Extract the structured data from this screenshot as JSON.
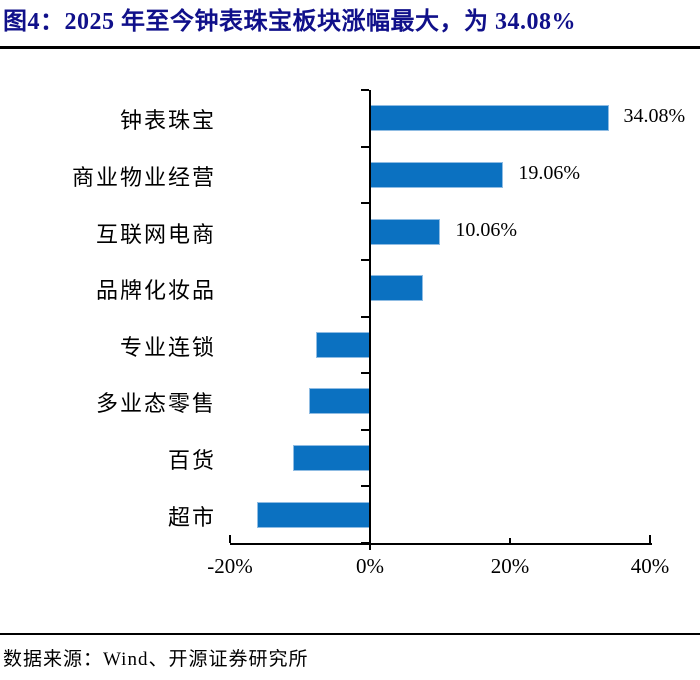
{
  "header": {
    "figure_label": "图4：",
    "title_text": "2025 年至今钟表珠宝板块涨幅最大，为 34.08%"
  },
  "footer": {
    "source": "数据来源：Wind、开源证券研究所"
  },
  "colors": {
    "bar": "#0B71C1",
    "bar_edge": "#8FBCE3",
    "title": "#10108A",
    "axis": "#000000"
  },
  "chart_data": {
    "type": "bar",
    "orientation": "horizontal",
    "title": "2025 年至今钟表珠宝板块涨幅最大，为 34.08%",
    "categories": [
      "钟表珠宝",
      "商业物业经营",
      "互联网电商",
      "品牌化妆品",
      "专业连锁",
      "多业态零售",
      "百货",
      "超市"
    ],
    "values": [
      34.08,
      19.06,
      10.06,
      7.6,
      -7.7,
      -8.7,
      -11.0,
      -16.1
    ],
    "data_labels": [
      "34.08%",
      "19.06%",
      "10.06%",
      null,
      null,
      null,
      null,
      null
    ],
    "x_tick_labels": [
      "-20%",
      "0%",
      "20%",
      "40%"
    ],
    "x_tick_values": [
      -20,
      0,
      20,
      40
    ],
    "xlim": [
      -20,
      40
    ],
    "xlabel": "",
    "ylabel": "",
    "grid": false,
    "legend": false
  }
}
